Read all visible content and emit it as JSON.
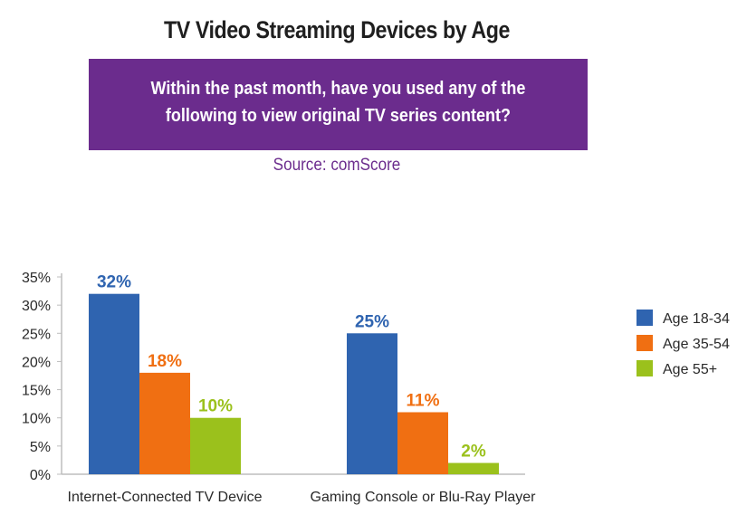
{
  "header": {
    "title": "TV Video Streaming Devices by Age",
    "question": "Within the past month, have you used any of the\nfollowing to view original TV series content?",
    "source": "Source: comScore"
  },
  "colors": {
    "banner": "#6b2c8d",
    "age_18_34": "#2f64b0",
    "age_35_54": "#f06f12",
    "age_55_plus": "#9bc11c"
  },
  "chart_data": {
    "type": "bar",
    "categories": [
      "Internet-Connected TV Device",
      "Gaming Console or Blu-Ray Player"
    ],
    "series": [
      {
        "name": "Age 18-34",
        "values": [
          32,
          25
        ],
        "labels": [
          "32%",
          "25%"
        ],
        "color": "#2f64b0"
      },
      {
        "name": "Age 35-54",
        "values": [
          18,
          11
        ],
        "labels": [
          "18%",
          "11%"
        ],
        "color": "#f06f12"
      },
      {
        "name": "Age 55+",
        "values": [
          10,
          2
        ],
        "labels": [
          "10%",
          "2%"
        ],
        "color": "#9bc11c"
      }
    ],
    "yticks": [
      "0%",
      "5%",
      "10%",
      "15%",
      "20%",
      "25%",
      "30%",
      "35%"
    ],
    "ylim": [
      0,
      35
    ],
    "grid": false,
    "legend": "right"
  }
}
